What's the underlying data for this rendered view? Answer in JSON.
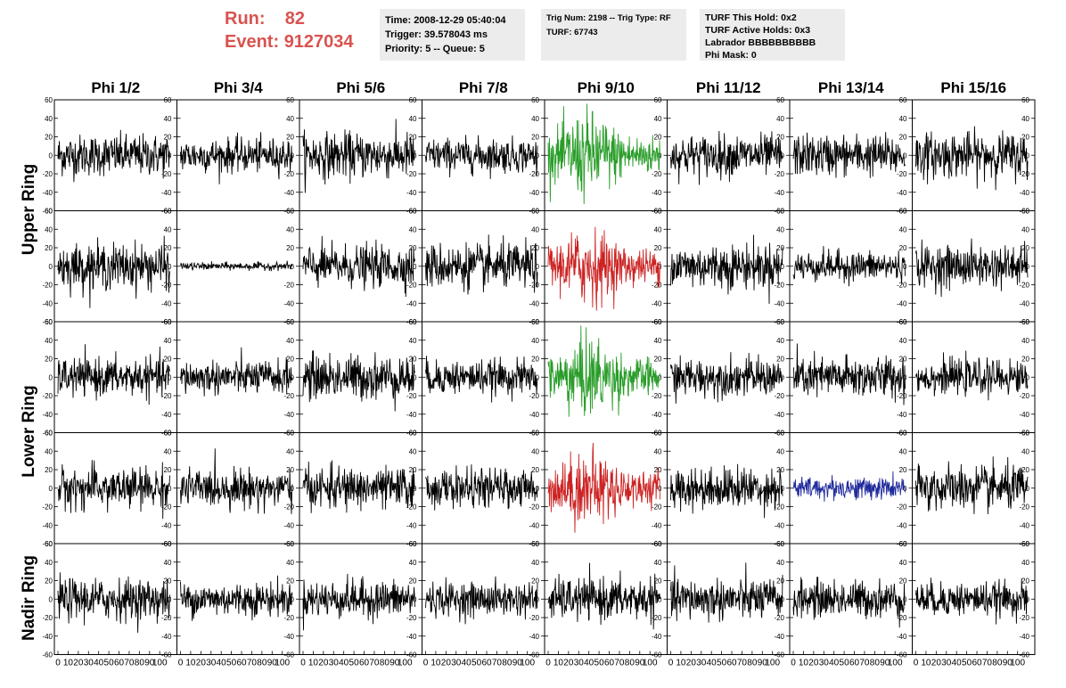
{
  "header": {
    "run_label": "Run:",
    "run_value": "82",
    "event_label": "Event:",
    "event_value": "9127034",
    "box1": [
      "Time: 2008-12-29 05:40:04",
      "Trigger: 39.578043 ms",
      "Priority: 5 -- Queue: 5"
    ],
    "box2": [
      "Trig Num: 2198 -- Trig Type: RF",
      "",
      "TURF: 67743"
    ],
    "box3": [
      "TURF This Hold: 0x2",
      "TURF Active Holds: 0x3",
      "Labrador BBBBBBBBBB",
      "Phi Mask: 0"
    ]
  },
  "colors": {
    "header_red": "#d9534f",
    "trace_black": "#000000",
    "trace_green": "#2a9d2a",
    "trace_red": "#cc2222",
    "trace_blue": "#1f2a9c",
    "info_bg": "#ececec"
  },
  "chart_data": {
    "type": "line",
    "columns": [
      "Phi 1/2",
      "Phi 3/4",
      "Phi 5/6",
      "Phi 7/8",
      "Phi 9/10",
      "Phi 11/12",
      "Phi 13/14",
      "Phi 15/16"
    ],
    "row_groups": [
      {
        "label": "Upper Ring",
        "rows": 2
      },
      {
        "label": "Lower Ring",
        "rows": 2
      },
      {
        "label": "Nadir Ring",
        "rows": 1
      }
    ],
    "ylim": [
      -60,
      60
    ],
    "yticks": [
      "-60",
      "-40",
      "-20",
      "0",
      "20",
      "40",
      "60"
    ],
    "xlim": [
      0,
      100
    ],
    "xticks": [
      "0",
      "10",
      "20",
      "30",
      "40",
      "50",
      "60",
      "70",
      "80",
      "90",
      "100"
    ],
    "samples_per_trace": 260,
    "panels": [
      [
        {
          "amp": 11,
          "color": "black"
        },
        {
          "amp": 9,
          "color": "black"
        },
        {
          "amp": 12,
          "color": "black"
        },
        {
          "amp": 9,
          "color": "black"
        },
        {
          "amp": 17,
          "color": "green"
        },
        {
          "amp": 11,
          "color": "black"
        },
        {
          "amp": 11,
          "color": "black"
        },
        {
          "amp": 12,
          "color": "black"
        }
      ],
      [
        {
          "amp": 12,
          "color": "black"
        },
        {
          "amp": 2,
          "color": "black"
        },
        {
          "amp": 11,
          "color": "black"
        },
        {
          "amp": 12,
          "color": "black"
        },
        {
          "amp": 15,
          "color": "red"
        },
        {
          "amp": 12,
          "color": "black"
        },
        {
          "amp": 8,
          "color": "black"
        },
        {
          "amp": 11,
          "color": "black"
        }
      ],
      [
        {
          "amp": 10,
          "color": "black"
        },
        {
          "amp": 9,
          "color": "black"
        },
        {
          "amp": 12,
          "color": "black"
        },
        {
          "amp": 9,
          "color": "black"
        },
        {
          "amp": 16,
          "color": "green"
        },
        {
          "amp": 10,
          "color": "black"
        },
        {
          "amp": 11,
          "color": "black"
        },
        {
          "amp": 9,
          "color": "black"
        }
      ],
      [
        {
          "amp": 11,
          "color": "black"
        },
        {
          "amp": 10,
          "color": "black"
        },
        {
          "amp": 11,
          "color": "black"
        },
        {
          "amp": 10,
          "color": "black"
        },
        {
          "amp": 15,
          "color": "red"
        },
        {
          "amp": 11,
          "color": "black"
        },
        {
          "amp": 6,
          "color": "blue"
        },
        {
          "amp": 12,
          "color": "black"
        }
      ],
      [
        {
          "amp": 11,
          "color": "black"
        },
        {
          "amp": 9,
          "color": "black"
        },
        {
          "amp": 10,
          "color": "black"
        },
        {
          "amp": 9,
          "color": "black"
        },
        {
          "amp": 11,
          "color": "black"
        },
        {
          "amp": 11,
          "color": "black"
        },
        {
          "amp": 10,
          "color": "black"
        },
        {
          "amp": 9,
          "color": "black"
        }
      ]
    ]
  }
}
